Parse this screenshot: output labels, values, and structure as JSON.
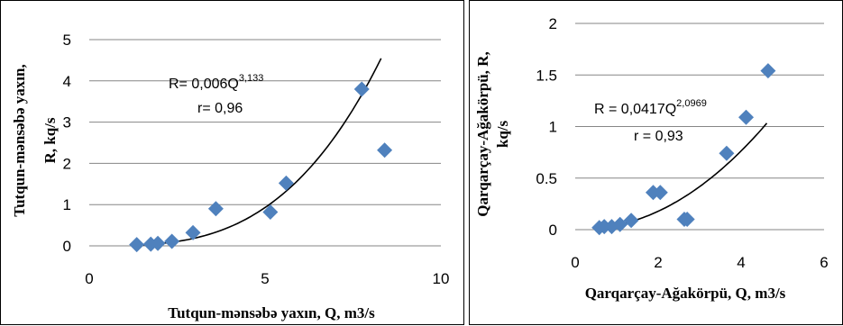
{
  "colors": {
    "marker": "#4f81bd",
    "trendline": "#000000",
    "grid": "#868686"
  },
  "chart_data": [
    {
      "type": "scatter",
      "xlabel": "Tutqun-mənsəbə yaxın, Q, m3/s",
      "ylabel_line1": "Tutqun-mənsəbə yaxın,",
      "ylabel_line2": "R, kq/s",
      "xlim": [
        0,
        10
      ],
      "ylim": [
        0,
        5
      ],
      "x_ticks": [
        "0",
        "5",
        "10"
      ],
      "y_ticks": [
        "0",
        "1",
        "2",
        "3",
        "4",
        "5"
      ],
      "grid": true,
      "series": [
        {
          "points": [
            [
              1.35,
              0.03
            ],
            [
              1.75,
              0.04
            ],
            [
              1.95,
              0.06
            ],
            [
              2.35,
              0.11
            ],
            [
              2.95,
              0.32
            ],
            [
              3.6,
              0.9
            ],
            [
              5.15,
              0.82
            ],
            [
              5.6,
              1.52
            ],
            [
              7.75,
              3.8
            ],
            [
              8.4,
              2.32
            ]
          ]
        }
      ],
      "trendline": {
        "type": "power",
        "a": 0.006,
        "b": 3.133,
        "x_range": [
          1.3,
          8.3
        ]
      },
      "equation_main": "R= 0,006Q",
      "equation_exp": "3,133",
      "r_text": "r= 0,96"
    },
    {
      "type": "scatter",
      "xlabel": "Qarqarçay-Ağakörpü, Q, m3/s",
      "ylabel_line1": "Qarqarçay-Ağakörpü, R,",
      "ylabel_line2": "kq/s",
      "xlim": [
        0,
        6
      ],
      "ylim": [
        0,
        2
      ],
      "x_ticks": [
        "0",
        "2",
        "4",
        "6"
      ],
      "y_ticks": [
        "0",
        "0.5",
        "1",
        "1.5",
        "2"
      ],
      "grid": true,
      "series": [
        {
          "points": [
            [
              0.58,
              0.02
            ],
            [
              0.7,
              0.03
            ],
            [
              0.88,
              0.03
            ],
            [
              1.08,
              0.05
            ],
            [
              1.35,
              0.09
            ],
            [
              1.88,
              0.36
            ],
            [
              2.05,
              0.36
            ],
            [
              2.63,
              0.1
            ],
            [
              2.7,
              0.1
            ],
            [
              3.65,
              0.74
            ],
            [
              4.12,
              1.09
            ],
            [
              4.65,
              1.54
            ]
          ]
        }
      ],
      "trendline": {
        "type": "power",
        "a": 0.0417,
        "b": 2.0969,
        "x_range": [
          0.55,
          4.62
        ]
      },
      "equation_main": "R = 0,0417Q",
      "equation_exp": "2,0969",
      "r_text": "r = 0,93"
    }
  ]
}
